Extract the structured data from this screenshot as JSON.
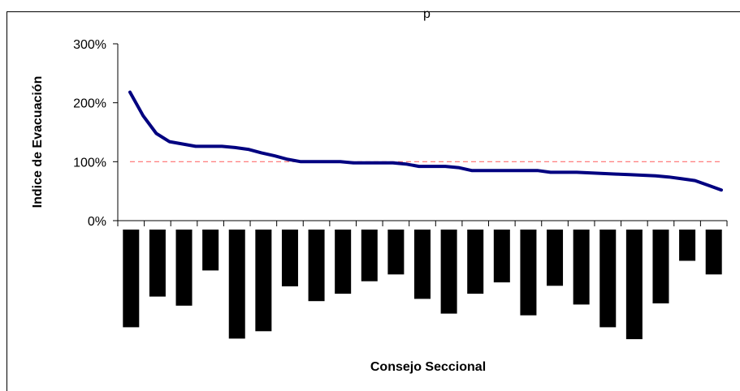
{
  "chart_data": {
    "type": "line",
    "title_fragment": "p",
    "xlabel": "Consejo Seccional",
    "ylabel": "Indice de Evacuación",
    "y_ticks": [
      "0%",
      "100%",
      "200%",
      "300%"
    ],
    "ylim": [
      0,
      300
    ],
    "reference_line": 100,
    "series": [
      {
        "values": [
          218,
          178,
          148,
          134,
          130,
          126,
          126,
          126,
          124,
          121,
          115,
          110,
          104,
          100,
          100,
          100,
          100,
          98,
          98,
          98,
          98,
          96,
          92,
          92,
          92,
          90,
          85,
          85,
          85,
          85,
          85,
          85,
          82,
          82,
          82,
          81,
          80,
          79,
          78,
          77,
          76,
          74,
          71,
          68,
          60,
          52
        ]
      }
    ],
    "bars": {
      "values": [
        -1.72,
        -1.18,
        -1.34,
        -0.72,
        -1.92,
        -1.79,
        -1.0,
        -1.26,
        -1.13,
        -0.91,
        -0.79,
        -1.22,
        -1.48,
        -1.13,
        -0.93,
        -1.51,
        -0.99,
        -1.32,
        -1.72,
        -1.93,
        -1.3,
        -0.55,
        -0.79
      ]
    },
    "grid": false,
    "legend": "none",
    "colors": {
      "line": "#000080",
      "reference": "#ff6f6f",
      "bars": "#000000"
    }
  }
}
